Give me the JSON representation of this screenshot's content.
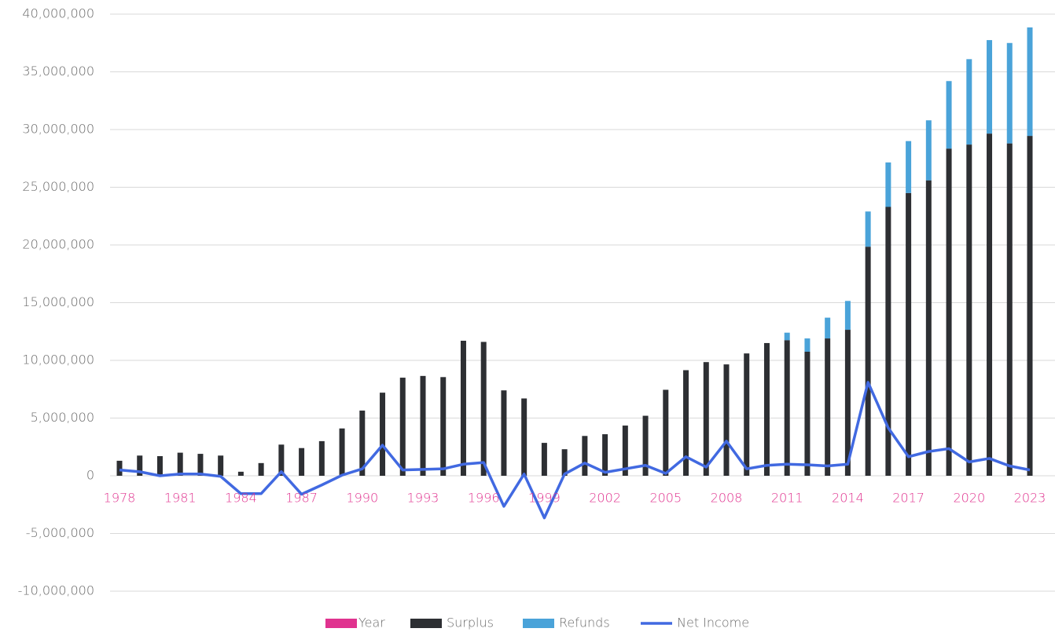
{
  "chart_data": {
    "type": "bar",
    "categories": [
      "1978",
      null,
      null,
      "1981",
      null,
      null,
      "1984",
      null,
      null,
      "1987",
      null,
      null,
      "1990",
      null,
      null,
      "1993",
      null,
      null,
      "1996",
      null,
      null,
      "1999",
      null,
      null,
      "2002",
      null,
      null,
      "2005",
      null,
      null,
      "2008",
      null,
      null,
      "2011",
      null,
      null,
      "2014",
      null,
      null,
      "2017",
      null,
      null,
      "2020",
      null,
      null,
      "2023"
    ],
    "x_series": {
      "name": "Year",
      "color": "#e0338f"
    },
    "series": [
      {
        "name": "Surplus",
        "color": "#2d2f33",
        "stacked": true,
        "values": [
          1300000,
          1750000,
          1700000,
          2000000,
          1900000,
          1750000,
          350000,
          1100000,
          2700000,
          2400000,
          3000000,
          4100000,
          5650000,
          7200000,
          8500000,
          8650000,
          8550000,
          11700000,
          11600000,
          7400000,
          6700000,
          2850000,
          2300000,
          3450000,
          3600000,
          4350000,
          5200000,
          7450000,
          9150000,
          9850000,
          9650000,
          10600000,
          11500000,
          11750000,
          10750000,
          11900000,
          12650000,
          19850000,
          23300000,
          24500000,
          25600000,
          28350000,
          28700000,
          29650000,
          28800000,
          29450000
        ]
      },
      {
        "name": "Refunds",
        "color": "#4aa3d9",
        "stacked": true,
        "values": [
          0,
          0,
          0,
          0,
          0,
          0,
          0,
          0,
          0,
          0,
          0,
          0,
          0,
          0,
          0,
          0,
          0,
          0,
          0,
          0,
          0,
          0,
          0,
          0,
          0,
          0,
          0,
          0,
          0,
          0,
          0,
          0,
          0,
          650000,
          1150000,
          1800000,
          2500000,
          3050000,
          3850000,
          4500000,
          5200000,
          5850000,
          7400000,
          8100000,
          8700000,
          9400000
        ]
      },
      {
        "name": "Net Income",
        "color": "#4169e1",
        "type": "line",
        "values": [
          500000,
          350000,
          0,
          150000,
          150000,
          -50000,
          -1550000,
          -1550000,
          350000,
          -1600000,
          -800000,
          50000,
          600000,
          2650000,
          500000,
          550000,
          600000,
          1000000,
          1150000,
          -2650000,
          150000,
          -3650000,
          150000,
          1100000,
          300000,
          600000,
          900000,
          200000,
          1650000,
          750000,
          3000000,
          600000,
          900000,
          1000000,
          950000,
          850000,
          1000000,
          8100000,
          4150000,
          1650000,
          2100000,
          2350000,
          1200000,
          1500000,
          850000,
          500000
        ]
      }
    ],
    "ylim": [
      -10000000,
      40000000
    ],
    "yticks": [
      {
        "value": -10000000,
        "label": "-10,000,000"
      },
      {
        "value": -5000000,
        "label": "-5,000,000"
      },
      0,
      {
        "value": 5000000,
        "label": "5,000,000"
      },
      {
        "value": 10000000,
        "label": "10,000,000"
      },
      {
        "value": 15000000,
        "label": "15,000,000"
      },
      {
        "value": 20000000,
        "label": "20,000,000"
      },
      {
        "value": 25000000,
        "label": "25,000,000"
      },
      {
        "value": 30000000,
        "label": "30,000,000"
      },
      {
        "value": 35000000,
        "label": "35,000,000"
      },
      {
        "value": 40000000,
        "label": "40,000,000"
      }
    ],
    "grid": true,
    "legend": "bottom"
  }
}
